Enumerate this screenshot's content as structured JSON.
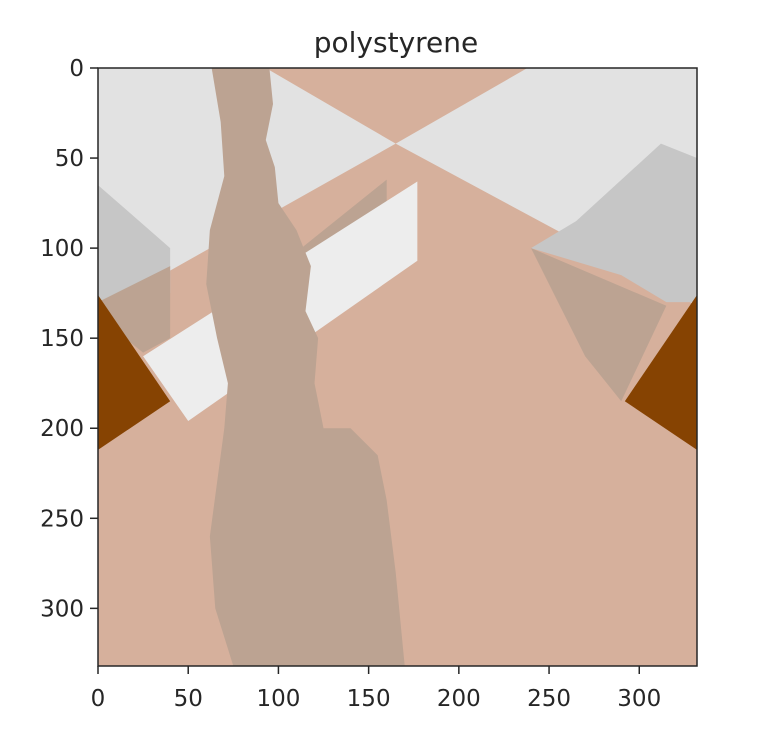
{
  "chart_data": {
    "type": "heatmap",
    "title": "polystyrene",
    "xlabel": "",
    "ylabel": "",
    "xlim": [
      0,
      332
    ],
    "ylim": [
      332,
      0
    ],
    "xticks": [
      0,
      50,
      100,
      150,
      200,
      250,
      300
    ],
    "yticks": [
      0,
      50,
      100,
      150,
      200,
      250,
      300
    ],
    "xtick_labels": [
      "0",
      "50",
      "100",
      "150",
      "200",
      "250",
      "300"
    ],
    "ytick_labels": [
      "0",
      "50",
      "100",
      "150",
      "200",
      "250",
      "300"
    ],
    "grid": false,
    "colors": {
      "background_region": "#d6b09c",
      "light_region": "#e2e2e2",
      "gray_region": "#c6c6c6",
      "overlap_region": "#bca392",
      "dark_region": "#864302",
      "bright_strip": "#ededed",
      "axis": "#262626"
    },
    "regions": [
      {
        "name": "background",
        "color": "background_region",
        "points": [
          [
            0,
            0
          ],
          [
            332,
            0
          ],
          [
            332,
            332
          ],
          [
            0,
            332
          ]
        ]
      },
      {
        "name": "upper-light-left",
        "color": "light_region",
        "points": [
          [
            0,
            0
          ],
          [
            93,
            0
          ],
          [
            165,
            42
          ],
          [
            0,
            135
          ]
        ]
      },
      {
        "name": "upper-light-right",
        "color": "light_region",
        "points": [
          [
            238,
            0
          ],
          [
            332,
            0
          ],
          [
            332,
            132
          ],
          [
            165,
            42
          ]
        ]
      },
      {
        "name": "left-gray-patch",
        "color": "gray_region",
        "points": [
          [
            0,
            65
          ],
          [
            40,
            100
          ],
          [
            40,
            125
          ],
          [
            0,
            130
          ]
        ]
      },
      {
        "name": "left-overlap-patch",
        "color": "overlap_region",
        "points": [
          [
            0,
            130
          ],
          [
            40,
            110
          ],
          [
            40,
            150
          ],
          [
            25,
            158
          ],
          [
            15,
            150
          ],
          [
            0,
            135
          ]
        ]
      },
      {
        "name": "right-gray-patch",
        "color": "gray_region",
        "points": [
          [
            312,
            42
          ],
          [
            332,
            50
          ],
          [
            332,
            130
          ],
          [
            315,
            130
          ],
          [
            290,
            115
          ],
          [
            240,
            100
          ],
          [
            265,
            85
          ]
        ]
      },
      {
        "name": "right-overlap-patch",
        "color": "overlap_region",
        "points": [
          [
            240,
            100
          ],
          [
            315,
            132
          ],
          [
            290,
            185
          ],
          [
            270,
            160
          ]
        ]
      },
      {
        "name": "diagonal-dark-strip",
        "color": "overlap_region",
        "points": [
          [
            48,
            152
          ],
          [
            160,
            62
          ],
          [
            160,
            80
          ],
          [
            48,
            165
          ]
        ]
      },
      {
        "name": "left-dark-triangle",
        "color": "dark_region",
        "points": [
          [
            0,
            126
          ],
          [
            40,
            185
          ],
          [
            0,
            212
          ]
        ]
      },
      {
        "name": "right-dark-triangle",
        "color": "dark_region",
        "points": [
          [
            332,
            126
          ],
          [
            332,
            212
          ],
          [
            292,
            185
          ]
        ]
      },
      {
        "name": "bright-strip",
        "color": "bright_strip",
        "points": [
          [
            25,
            160
          ],
          [
            177,
            63
          ],
          [
            177,
            107
          ],
          [
            50,
            196
          ]
        ]
      },
      {
        "name": "central-column",
        "color": "overlap_region",
        "points": [
          [
            63,
            0
          ],
          [
            95,
            0
          ],
          [
            97,
            20
          ],
          [
            93,
            40
          ],
          [
            98,
            55
          ],
          [
            100,
            75
          ],
          [
            110,
            90
          ],
          [
            118,
            110
          ],
          [
            115,
            135
          ],
          [
            122,
            150
          ],
          [
            120,
            175
          ],
          [
            125,
            200
          ],
          [
            140,
            200
          ],
          [
            155,
            215
          ],
          [
            160,
            240
          ],
          [
            165,
            280
          ],
          [
            170,
            332
          ],
          [
            75,
            332
          ],
          [
            65,
            300
          ],
          [
            62,
            260
          ],
          [
            66,
            230
          ],
          [
            70,
            200
          ],
          [
            72,
            175
          ],
          [
            66,
            150
          ],
          [
            60,
            120
          ],
          [
            62,
            90
          ],
          [
            70,
            60
          ],
          [
            68,
            30
          ]
        ]
      }
    ]
  }
}
